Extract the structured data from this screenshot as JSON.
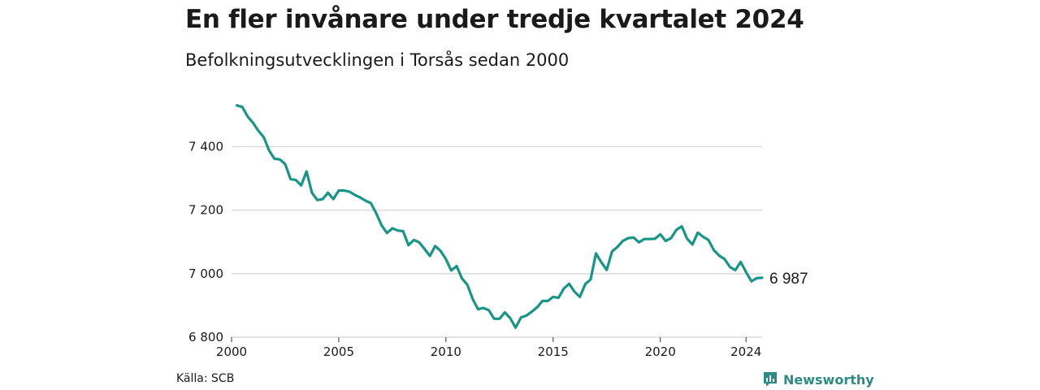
{
  "header": {
    "title": "En fler invånare under tredje kvartalet 2024",
    "subtitle": "Befolkningsutvecklingen i Torsås sedan 2000"
  },
  "footer": {
    "source": "Källa: SCB",
    "brand": "Newsworthy",
    "brand_icon": "newsworthy-logo-icon"
  },
  "colors": {
    "line": "#1a9487",
    "grid": "#d9d9d9",
    "brand": "#2e8b82"
  },
  "chart_data": {
    "type": "line",
    "title": "En fler invånare under tredje kvartalet 2024",
    "subtitle": "Befolkningsutvecklingen i Torsås sedan 2000",
    "xlabel": "",
    "ylabel": "",
    "xlim": [
      2000,
      2024.75
    ],
    "ylim": [
      6800,
      7560
    ],
    "x_ticks": [
      2000,
      2005,
      2010,
      2015,
      2020,
      2024
    ],
    "x_tick_labels": [
      "2000",
      "2005",
      "2010",
      "2015",
      "2020",
      "2024"
    ],
    "y_ticks": [
      6800,
      7000,
      7200,
      7400
    ],
    "y_tick_labels": [
      "6 800",
      "7 000",
      "7 200",
      "7 400"
    ],
    "grid": "horizontal",
    "end_label": "6 987",
    "x_start": 2000.25,
    "x_step": 0.25,
    "values": [
      7530,
      7525,
      7495,
      7475,
      7450,
      7430,
      7388,
      7362,
      7360,
      7345,
      7298,
      7295,
      7278,
      7322,
      7255,
      7232,
      7235,
      7255,
      7235,
      7262,
      7262,
      7258,
      7248,
      7240,
      7230,
      7222,
      7190,
      7152,
      7128,
      7143,
      7136,
      7134,
      7090,
      7106,
      7099,
      7078,
      7056,
      7087,
      7072,
      7046,
      7010,
      7024,
      6985,
      6965,
      6920,
      6888,
      6892,
      6885,
      6858,
      6858,
      6878,
      6860,
      6830,
      6862,
      6868,
      6880,
      6894,
      6914,
      6914,
      6927,
      6924,
      6953,
      6968,
      6943,
      6927,
      6967,
      6982,
      7064,
      7036,
      7012,
      7070,
      7084,
      7103,
      7112,
      7114,
      7099,
      7109,
      7109,
      7110,
      7124,
      7103,
      7112,
      7138,
      7149,
      7110,
      7092,
      7129,
      7116,
      7106,
      7074,
      7057,
      7046,
      7021,
      7011,
      7037,
      7005,
      6976,
      6986,
      6987
    ]
  }
}
